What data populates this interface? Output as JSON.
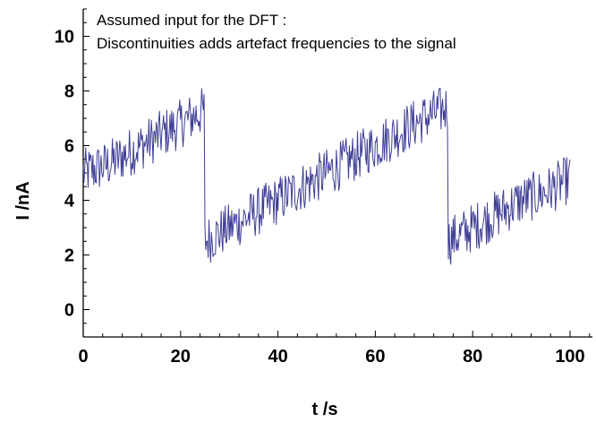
{
  "chart_data": {
    "type": "line",
    "title": "",
    "annotation": [
      "Assumed input for the DFT :",
      "Discontinuities adds artefact frequencies to the signal"
    ],
    "xlabel": "t /s",
    "ylabel": "I /nA",
    "xlim": [
      0,
      100
    ],
    "ylim": [
      -1,
      11
    ],
    "x_ticks": [
      0,
      20,
      40,
      60,
      80,
      100
    ],
    "y_ticks": [
      0,
      2,
      4,
      6,
      8,
      10
    ],
    "grid": false,
    "series": [
      {
        "color": "#3f3f96",
        "x": [
          0,
          5,
          10,
          15,
          20,
          24.9,
          25,
          30,
          35,
          40,
          45,
          50,
          55,
          60,
          65,
          70,
          74.9,
          75,
          80,
          85,
          90,
          95,
          100
        ],
        "y": [
          5.0,
          5.3,
          5.8,
          6.3,
          6.8,
          7.3,
          2.5,
          3.0,
          3.5,
          4.0,
          4.5,
          5.0,
          5.5,
          6.0,
          6.5,
          7.0,
          7.4,
          2.5,
          3.0,
          3.5,
          4.0,
          4.3,
          4.8
        ],
        "noise_amplitude": 0.9
      }
    ]
  }
}
